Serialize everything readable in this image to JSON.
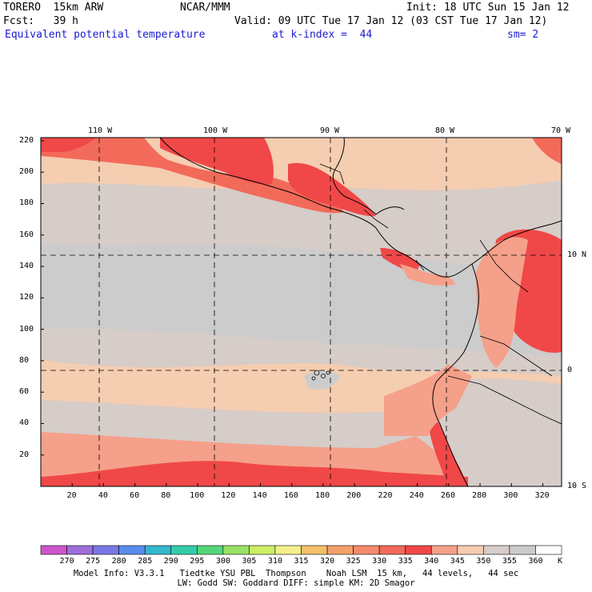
{
  "header": {
    "model_name": "TORERO  15km ARW",
    "org": "NCAR/MMM",
    "init": "Init: 18 UTC Sun 15 Jan 12",
    "fcst": "Fcst:   39 h",
    "valid": "Valid: 09 UTC Tue 17 Jan 12 (03 CST Tue 17 Jan 12)",
    "field": "Equivalent potential temperature",
    "level": "at k-index =  44",
    "smooth": "sm= 2"
  },
  "map": {
    "top_lon_labels": [
      "110 W",
      "100 W",
      "90 W",
      "80 W",
      "70 W"
    ],
    "right_lat_labels": [
      "10 N",
      "0",
      "10 S"
    ],
    "left_y_ticks": [
      "220",
      "200",
      "180",
      "160",
      "140",
      "120",
      "100",
      "80",
      "60",
      "40",
      "20"
    ],
    "bottom_x_ticks": [
      "20",
      "40",
      "60",
      "80",
      "100",
      "120",
      "140",
      "160",
      "180",
      "200",
      "220",
      "240",
      "260",
      "280",
      "300",
      "320"
    ]
  },
  "colorbar": {
    "unit": "K",
    "labels": [
      "270",
      "275",
      "280",
      "285",
      "290",
      "295",
      "300",
      "305",
      "310",
      "315",
      "320",
      "325",
      "330",
      "335",
      "340",
      "345",
      "350",
      "355",
      "360"
    ],
    "colors": [
      "#cc55cc",
      "#9f6fd9",
      "#7a78e6",
      "#5a8cee",
      "#33b8cc",
      "#33ccaa",
      "#55d67a",
      "#99e066",
      "#ccee66",
      "#f2f08a",
      "#f5c06a",
      "#f5a06a",
      "#f58a6e",
      "#f26a5a",
      "#f04848",
      "#f5a08a",
      "#f5cdb0",
      "#d6ccc8",
      "#cccccc",
      "#ffffff"
    ]
  },
  "footer": {
    "line1": "Model Info: V3.3.1   Tiedtke YSU PBL  Thompson    Noah LSM  15 km,   44 levels,   44 sec",
    "line2": "LW: Godd SW: Goddard DIFF: simple KM: 2D Smagor"
  }
}
